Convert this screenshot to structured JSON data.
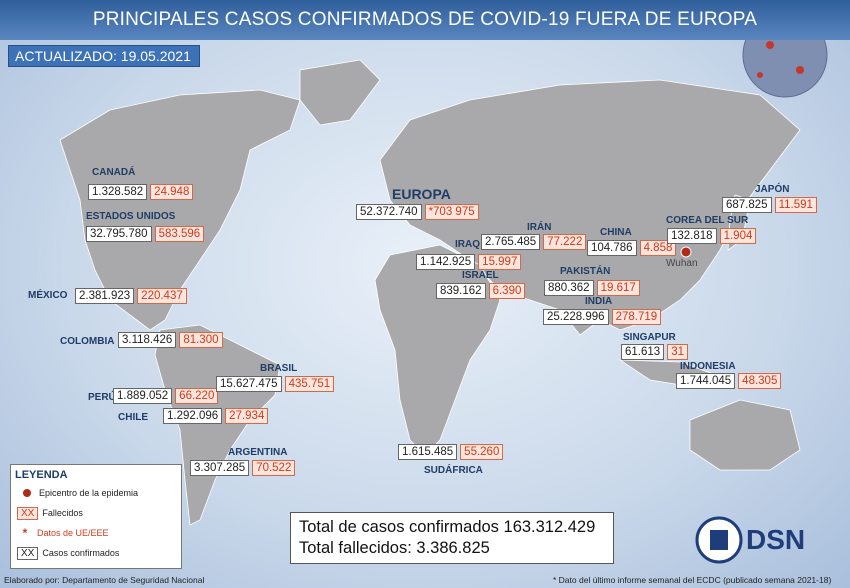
{
  "header": {
    "title": "PRINCIPALES CASOS CONFIRMADOS DE COVID-19 FUERA DE EUROPA",
    "updated_label": "ACTUALIZADO:",
    "updated_date": "19.05.2021"
  },
  "countries": [
    {
      "name": "CANADÁ",
      "confirmed": "1.328.582",
      "deaths": "24.948"
    },
    {
      "name": "ESTADOS UNIDOS",
      "confirmed": "32.795.780",
      "deaths": "583.596"
    },
    {
      "name": "MÉXICO",
      "confirmed": "2.381.923",
      "deaths": "220.437"
    },
    {
      "name": "COLOMBIA",
      "confirmed": "3.118.426",
      "deaths": "81.300"
    },
    {
      "name": "PERÚ",
      "confirmed": "1.889.052",
      "deaths": "66.220"
    },
    {
      "name": "CHILE",
      "confirmed": "1.292.096",
      "deaths": "27.934"
    },
    {
      "name": "BRASIL",
      "confirmed": "15.627.475",
      "deaths": "435.751"
    },
    {
      "name": "ARGENTINA",
      "confirmed": "3.307.285",
      "deaths": "70.522"
    },
    {
      "name": "EUROPA",
      "confirmed": "52.372.740",
      "deaths": "*703 975"
    },
    {
      "name": "IRÁN",
      "confirmed": "2.765.485",
      "deaths": "77.222"
    },
    {
      "name": "IRAQ",
      "confirmed": "1.142.925",
      "deaths": "15.997"
    },
    {
      "name": "ISRAEL",
      "confirmed": "839.162",
      "deaths": "6.390"
    },
    {
      "name": "PAKISTÁN",
      "confirmed": "880.362",
      "deaths": "19.617"
    },
    {
      "name": "INDIA",
      "confirmed": "25.228.996",
      "deaths": "278.719"
    },
    {
      "name": "CHINA",
      "confirmed": "104.786",
      "deaths": "4.858"
    },
    {
      "name": "COREA DEL SUR",
      "confirmed": "132.818",
      "deaths": "1.904"
    },
    {
      "name": "JAPÓN",
      "confirmed": "687.825",
      "deaths": "11.591"
    },
    {
      "name": "SINGAPUR",
      "confirmed": "61.613",
      "deaths": "31"
    },
    {
      "name": "INDONESIA",
      "confirmed": "1.744.045",
      "deaths": "48.305"
    },
    {
      "name": "SUDÁFRICA",
      "confirmed": "1.615.485",
      "deaths": "55.260"
    }
  ],
  "epicenter": "Wuhan",
  "legend": {
    "title": "LEYENDA",
    "items": [
      {
        "symbol": "",
        "label": "Epicentro de la epidemia"
      },
      {
        "symbol": "XX",
        "label": "Fallecidos"
      },
      {
        "symbol": "*",
        "label": "Datos de UE/EEE"
      },
      {
        "symbol": "XX",
        "label": "Casos confirmados"
      }
    ]
  },
  "totals": {
    "confirmed": "Total de casos confirmados 163.312.429",
    "deaths": "Total fallecidos: 3.386.825"
  },
  "logo": "DSN",
  "footer": {
    "credit": "Elaborado por: Departamento de Seguridad Nacional",
    "note": "* Dato del último informe semanal del ECDC (publicado semana 2021-18)"
  }
}
